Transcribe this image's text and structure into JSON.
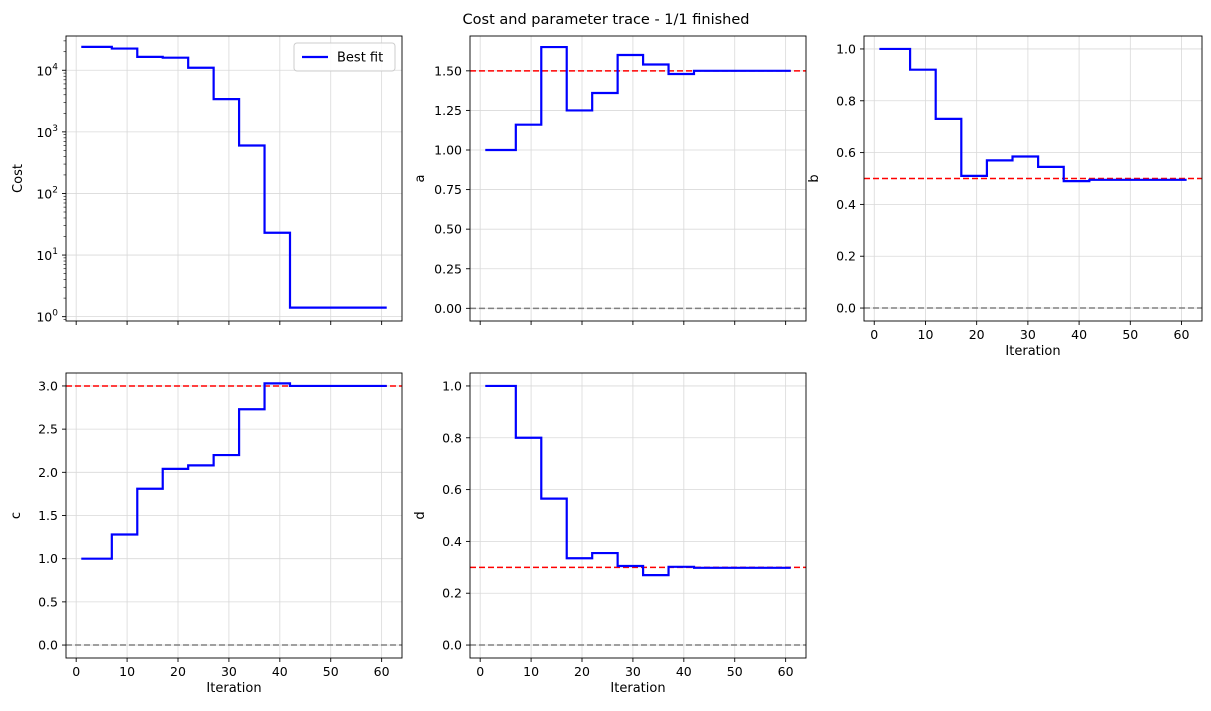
{
  "figure": {
    "title": "Cost and parameter trace - 1/1 finished"
  },
  "colors": {
    "series": "#0000ff",
    "true_value": "#ff0000",
    "zero_line": "#808080",
    "grid": "#d9d9d9"
  },
  "chart_data": [
    {
      "id": "cost",
      "type": "line",
      "step": true,
      "yscale": "log",
      "title": "",
      "xlabel": "",
      "ylabel": "Cost",
      "xlim": [
        -2,
        64
      ],
      "ylim": [
        0.85,
        36000
      ],
      "xticks": [
        0,
        10,
        20,
        30,
        40,
        50,
        60
      ],
      "show_xticklabels": false,
      "yticks": [
        1,
        10,
        100,
        1000,
        10000
      ],
      "yticklabels": [
        [
          "10",
          "0"
        ],
        [
          "10",
          "1"
        ],
        [
          "10",
          "2"
        ],
        [
          "10",
          "3"
        ],
        [
          "10",
          "4"
        ]
      ],
      "legend": {
        "label": "Best fit",
        "position": "top-right"
      },
      "series": [
        {
          "name": "Best fit",
          "x": [
            1,
            7,
            12,
            17,
            22,
            27,
            32,
            37,
            42,
            61
          ],
          "y": [
            24000,
            22500,
            16500,
            16000,
            11000,
            3400,
            600,
            23,
            1.4,
            1.4
          ]
        }
      ],
      "hlines": []
    },
    {
      "id": "a",
      "type": "line",
      "step": true,
      "yscale": "linear",
      "title": "",
      "xlabel": "",
      "ylabel": "a",
      "xlim": [
        -2,
        64
      ],
      "ylim": [
        -0.08,
        1.72
      ],
      "xticks": [
        0,
        10,
        20,
        30,
        40,
        50,
        60
      ],
      "show_xticklabels": false,
      "yticks": [
        0.0,
        0.25,
        0.5,
        0.75,
        1.0,
        1.25,
        1.5
      ],
      "yticklabels": [
        "0.00",
        "0.25",
        "0.50",
        "0.75",
        "1.00",
        "1.25",
        "1.50"
      ],
      "series": [
        {
          "name": "Best fit",
          "x": [
            1,
            7,
            12,
            17,
            22,
            27,
            32,
            37,
            42,
            61
          ],
          "y": [
            1.0,
            1.16,
            1.65,
            1.25,
            1.36,
            1.6,
            1.54,
            1.48,
            1.5,
            1.5
          ]
        }
      ],
      "hlines": [
        {
          "y": 1.5,
          "kind": "true_value"
        },
        {
          "y": 0,
          "kind": "zero_line"
        }
      ]
    },
    {
      "id": "b",
      "type": "line",
      "step": true,
      "yscale": "linear",
      "title": "",
      "xlabel": "Iteration",
      "ylabel": "b",
      "xlim": [
        -2,
        64
      ],
      "ylim": [
        -0.05,
        1.05
      ],
      "xticks": [
        0,
        10,
        20,
        30,
        40,
        50,
        60
      ],
      "show_xticklabels": true,
      "yticks": [
        0.0,
        0.2,
        0.4,
        0.6,
        0.8,
        1.0
      ],
      "yticklabels": [
        "0.0",
        "0.2",
        "0.4",
        "0.6",
        "0.8",
        "1.0"
      ],
      "series": [
        {
          "name": "Best fit",
          "x": [
            1,
            7,
            12,
            17,
            22,
            27,
            32,
            37,
            42,
            61
          ],
          "y": [
            1.0,
            0.92,
            0.73,
            0.51,
            0.57,
            0.585,
            0.545,
            0.49,
            0.495,
            0.495
          ]
        }
      ],
      "hlines": [
        {
          "y": 0.5,
          "kind": "true_value"
        },
        {
          "y": 0,
          "kind": "zero_line"
        }
      ]
    },
    {
      "id": "c",
      "type": "line",
      "step": true,
      "yscale": "linear",
      "title": "",
      "xlabel": "Iteration",
      "ylabel": "c",
      "xlim": [
        -2,
        64
      ],
      "ylim": [
        -0.15,
        3.15
      ],
      "xticks": [
        0,
        10,
        20,
        30,
        40,
        50,
        60
      ],
      "show_xticklabels": true,
      "yticks": [
        0.0,
        0.5,
        1.0,
        1.5,
        2.0,
        2.5,
        3.0
      ],
      "yticklabels": [
        "0.0",
        "0.5",
        "1.0",
        "1.5",
        "2.0",
        "2.5",
        "3.0"
      ],
      "series": [
        {
          "name": "Best fit",
          "x": [
            1,
            7,
            12,
            17,
            22,
            27,
            32,
            37,
            42,
            61
          ],
          "y": [
            1.0,
            1.28,
            1.81,
            2.04,
            2.08,
            2.2,
            2.73,
            3.03,
            3.0,
            3.0
          ]
        }
      ],
      "hlines": [
        {
          "y": 3.0,
          "kind": "true_value"
        },
        {
          "y": 0,
          "kind": "zero_line"
        }
      ]
    },
    {
      "id": "d",
      "type": "line",
      "step": true,
      "yscale": "linear",
      "title": "",
      "xlabel": "Iteration",
      "ylabel": "d",
      "xlim": [
        -2,
        64
      ],
      "ylim": [
        -0.05,
        1.05
      ],
      "xticks": [
        0,
        10,
        20,
        30,
        40,
        50,
        60
      ],
      "show_xticklabels": true,
      "yticks": [
        0.0,
        0.2,
        0.4,
        0.6,
        0.8,
        1.0
      ],
      "yticklabels": [
        "0.0",
        "0.2",
        "0.4",
        "0.6",
        "0.8",
        "1.0"
      ],
      "series": [
        {
          "name": "Best fit",
          "x": [
            1,
            7,
            12,
            17,
            22,
            27,
            32,
            37,
            42,
            61
          ],
          "y": [
            1.0,
            0.8,
            0.565,
            0.335,
            0.355,
            0.305,
            0.27,
            0.302,
            0.298,
            0.298
          ]
        }
      ],
      "hlines": [
        {
          "y": 0.3,
          "kind": "true_value"
        },
        {
          "y": 0,
          "kind": "zero_line"
        }
      ]
    }
  ]
}
